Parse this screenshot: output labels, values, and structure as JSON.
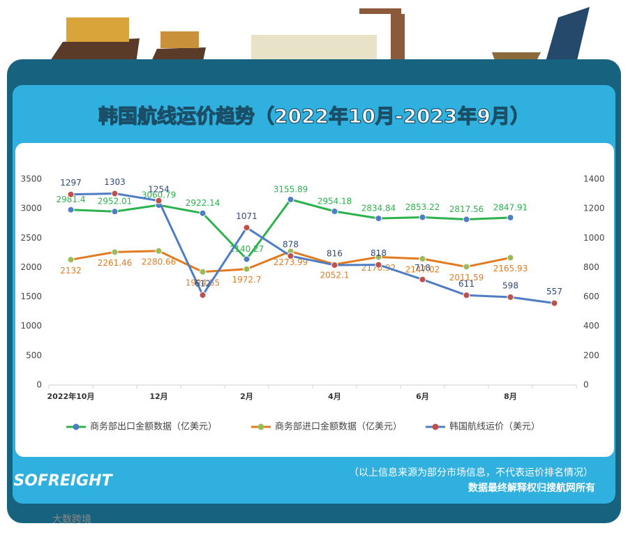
{
  "header": {
    "title": "韩国航线运价趋势（2022年10月-2023年9月）"
  },
  "chart_data": {
    "type": "line",
    "categories": [
      "2022年10月",
      null,
      "12月",
      null,
      "2月",
      null,
      "4月",
      null,
      "6月",
      null,
      "8月",
      null
    ],
    "series": [
      {
        "name": "商务部出口金额数据（亿美元）",
        "color": "#2bb24c",
        "marker_color": "#4f7dc4",
        "values": [
          2981.4,
          2952.01,
          3060.79,
          2922.14,
          2140.27,
          3155.89,
          2954.18,
          2834.84,
          2853.22,
          2817.56,
          2847.91,
          null
        ]
      },
      {
        "name": "商务部进口金额数据（亿美元）",
        "color": "#e07b22",
        "marker_color": "#9bbb59",
        "values": [
          2132,
          2261.46,
          2280.66,
          1924.55,
          1972.7,
          2273.99,
          2052.1,
          2176.92,
          2147.02,
          2011.59,
          2165.93,
          null
        ]
      },
      {
        "name": "韩国航线运价（美元）",
        "color": "#4f7dc4",
        "marker_color": "#c0504d",
        "axis": "y2",
        "values": [
          1297,
          1303,
          1254,
          612,
          1071,
          878,
          816,
          818,
          718,
          611,
          598,
          557
        ]
      }
    ],
    "ylim": [
      0,
      3500
    ],
    "yticks": [
      0,
      500,
      1000,
      1500,
      2000,
      2500,
      3000,
      3500
    ],
    "y2lim": [
      0,
      1400
    ],
    "y2ticks": [
      0,
      200,
      400,
      600,
      800,
      1000,
      1200,
      1400
    ],
    "legend": "bottom"
  },
  "footer": {
    "note": "（以上信息来源为部分市场信息，不代表运价排名情况）",
    "rights": "数据最终解释权归搜航网所有",
    "logo": "SOFREIGHT"
  },
  "watermark": "大数跨境"
}
